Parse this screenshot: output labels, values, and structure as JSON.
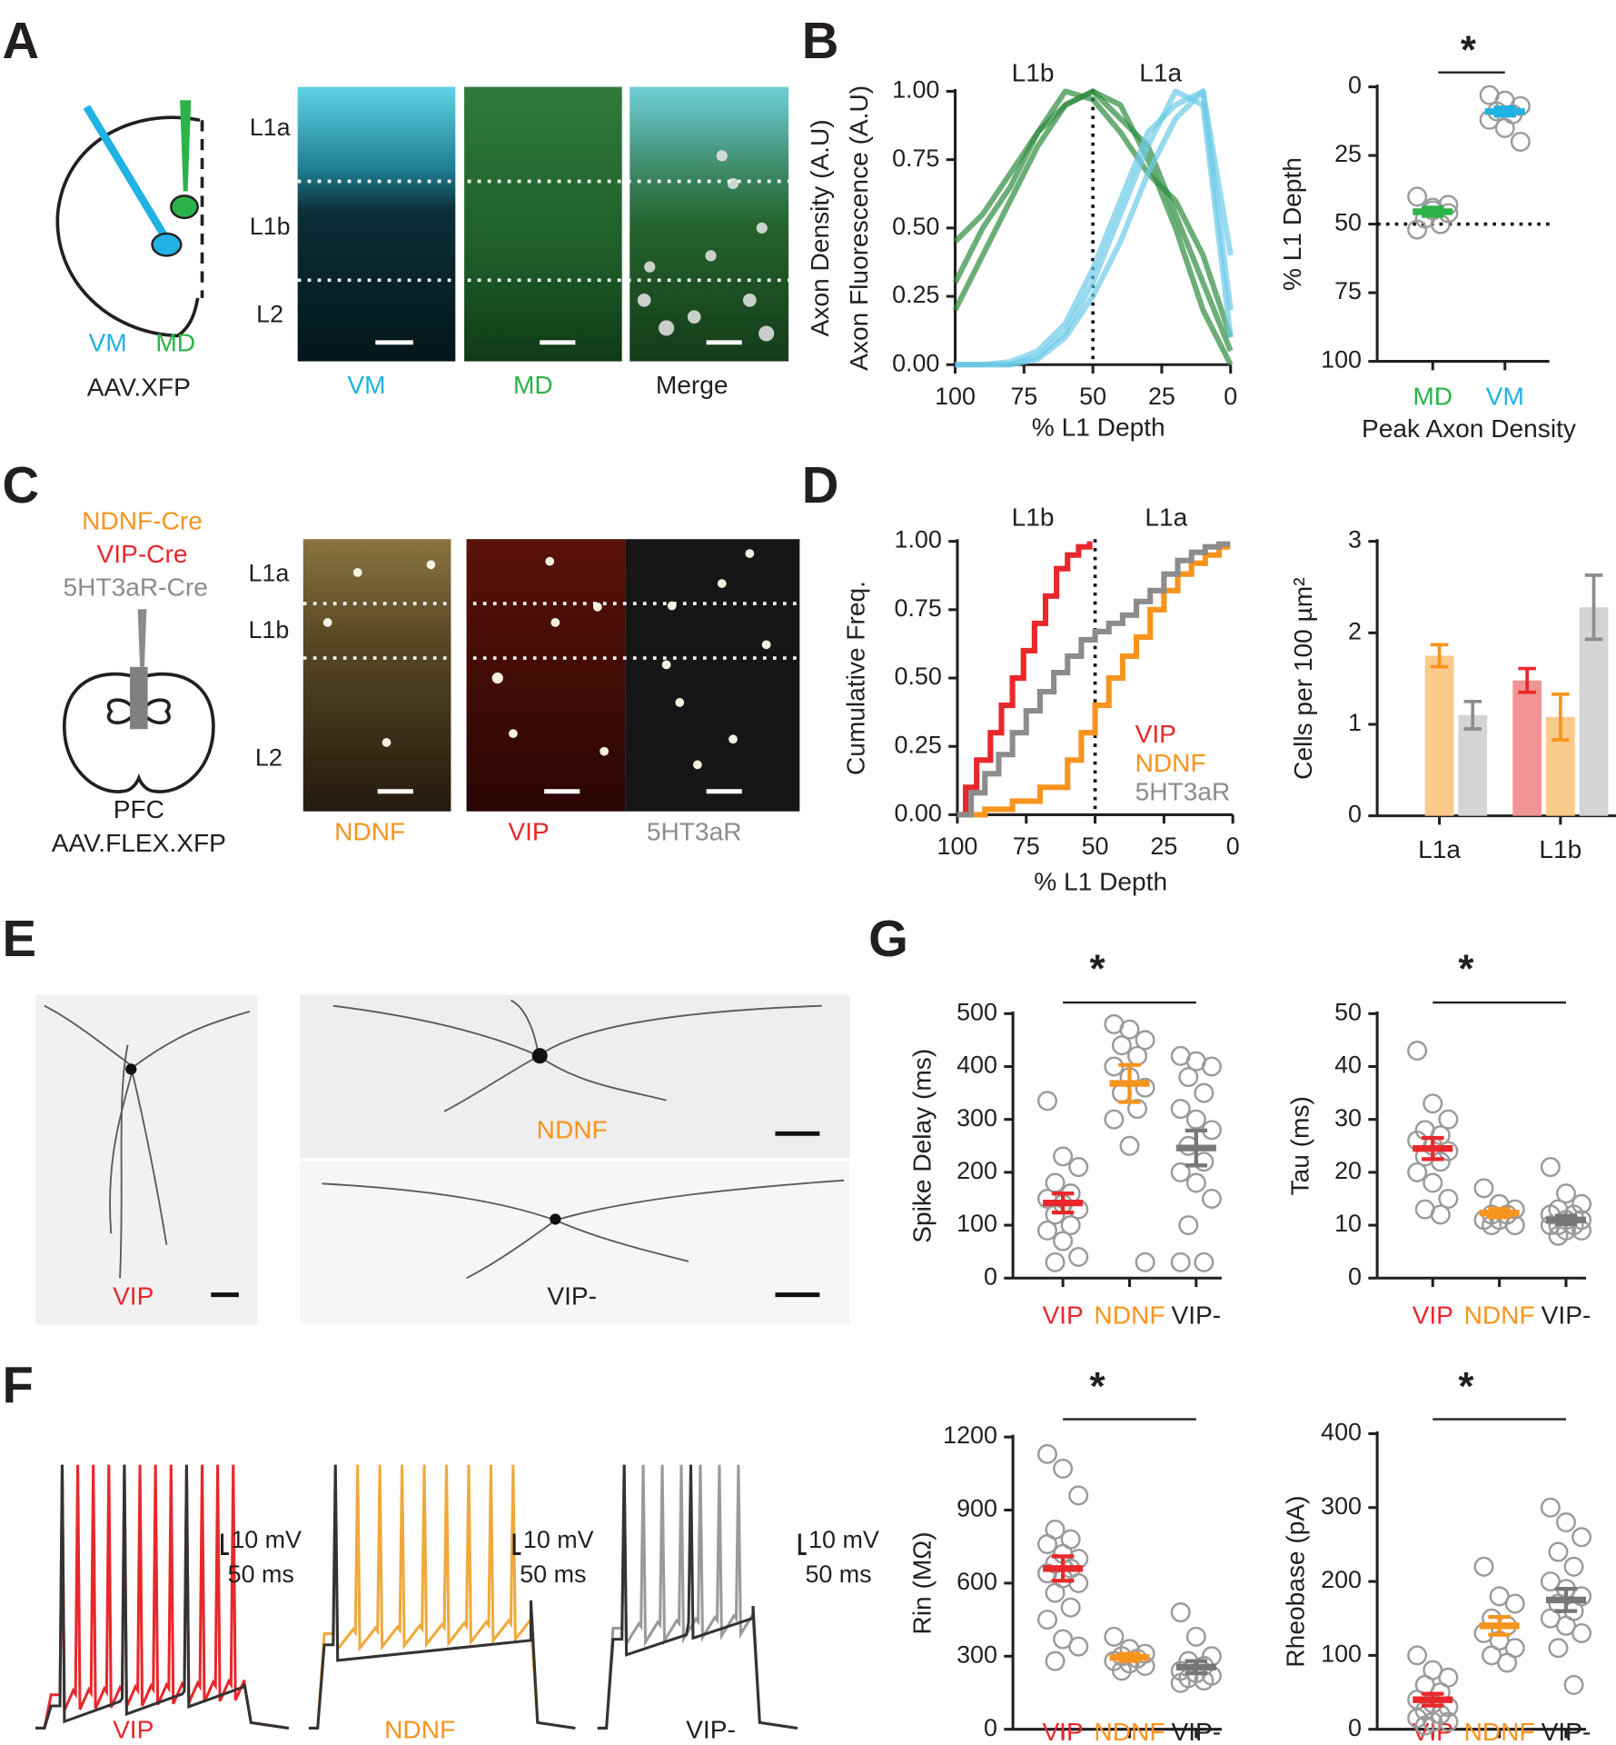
{
  "labels": {
    "letters": [
      "A",
      "B",
      "C",
      "D",
      "E",
      "F",
      "G"
    ],
    "a_injections": [
      "VM",
      "MD"
    ],
    "a_virus": "AAV.XFP",
    "a_layers": [
      "L1a",
      "L1b",
      "L2"
    ],
    "a_images": [
      "VM",
      "MD",
      "Merge"
    ],
    "c_lines": [
      "NDNF-Cre",
      "VIP-Cre",
      "5HT3aR-Cre"
    ],
    "c_region": "PFC",
    "c_virus": "AAV.FLEX.XFP",
    "c_layers": [
      "L1a",
      "L1b",
      "L2"
    ],
    "c_images": [
      "NDNF",
      "VIP",
      "5HT3aR"
    ],
    "e_images": [
      "VIP",
      "NDNF",
      "VIP-"
    ],
    "f_traces": [
      "VIP",
      "NDNF",
      "VIP-"
    ],
    "f_scale_v": [
      "10 mV",
      "10 mV",
      "10 mV"
    ],
    "f_scale_t": [
      "50 ms",
      "50 ms",
      "50 ms"
    ]
  },
  "chart_data": [
    {
      "type": "line",
      "x": [
        100,
        90,
        80,
        70,
        60,
        50,
        40,
        30,
        20,
        10,
        0
      ],
      "xlim": [
        100,
        0
      ],
      "xticks": [
        100,
        75,
        50,
        25,
        0
      ],
      "ylim": [
        0,
        1
      ],
      "yticks": [
        {
          "value": 0,
          "label": "0.00"
        },
        0.25,
        {
          "value": 0.5,
          "label": "0.50"
        },
        0.75,
        {
          "value": 1,
          "label": "1.00"
        }
      ],
      "xlabel": "% L1 Depth",
      "ylabel": [
        "Axon Density (A.U)",
        "Axon Fluorescence (A.U)"
      ],
      "annotations": [
        "L1b",
        "L1a"
      ],
      "refline_x": 50,
      "series": [
        {
          "color": "#2e8b3e",
          "values": [
            0.2,
            0.4,
            0.6,
            0.8,
            0.95,
            1.0,
            0.95,
            0.75,
            0.5,
            0.2,
            0.0
          ]
        },
        {
          "color": "#2e8b3e",
          "values": [
            0.45,
            0.55,
            0.7,
            0.85,
            0.95,
            1.0,
            0.9,
            0.8,
            0.55,
            0.3,
            0.05
          ]
        },
        {
          "color": "#2e8b3e",
          "values": [
            0.3,
            0.5,
            0.65,
            0.85,
            1.0,
            0.97,
            0.85,
            0.7,
            0.6,
            0.4,
            0.1
          ]
        },
        {
          "color": "#6ccbe8",
          "values": [
            0,
            0,
            0,
            0.02,
            0.1,
            0.25,
            0.45,
            0.7,
            0.9,
            1.0,
            0.2
          ]
        },
        {
          "color": "#6ccbe8",
          "values": [
            0,
            0,
            0,
            0.03,
            0.12,
            0.3,
            0.55,
            0.8,
            1.0,
            0.95,
            0.1
          ]
        },
        {
          "color": "#6ccbe8",
          "values": [
            0,
            0,
            0.01,
            0.05,
            0.15,
            0.35,
            0.6,
            0.85,
            0.95,
            1.0,
            0.4
          ]
        }
      ]
    },
    {
      "type": "dotplot",
      "categories": [
        "MD",
        "VM"
      ],
      "category_colors": [
        "#2bb34a",
        "#1fb2e3"
      ],
      "mean_colors": [
        "#2bb34a",
        "#1fb2e3"
      ],
      "points": [
        [
          40,
          44,
          46,
          48,
          50,
          52,
          45,
          43
        ],
        [
          3,
          5,
          7,
          9,
          10,
          12,
          15,
          20
        ]
      ],
      "means": [
        45.5,
        9
      ],
      "errors": [
        1.5,
        1.5
      ],
      "ylim": [
        100,
        0
      ],
      "yticks": [
        0,
        25,
        50,
        75,
        100
      ],
      "xlabel": "Peak Axon Density",
      "ylabel": "% L1 Depth",
      "annotation": "*",
      "refline_y": 50
    },
    {
      "type": "step",
      "xlim": [
        100,
        0
      ],
      "xticks": [
        100,
        75,
        50,
        25,
        0
      ],
      "ylim": [
        0,
        1
      ],
      "yticks": [
        {
          "value": 0,
          "label": "0.00"
        },
        0.25,
        {
          "value": 0.5,
          "label": "0.50"
        },
        0.75,
        {
          "value": 1,
          "label": "1.00"
        }
      ],
      "xlabel": "% L1 Depth",
      "ylabel": "Cumulative Freq.",
      "annotations": [
        "L1b",
        "L1a"
      ],
      "refline_x": 50,
      "series": [
        {
          "name": "VIP",
          "color": "#e8282b",
          "x": [
            100,
            97,
            93,
            88,
            84,
            80,
            76,
            72,
            68,
            64,
            60,
            56,
            52
          ],
          "values": [
            0,
            0.1,
            0.2,
            0.3,
            0.4,
            0.5,
            0.6,
            0.7,
            0.8,
            0.9,
            0.95,
            0.98,
            1.0
          ]
        },
        {
          "name": "NDNF",
          "color": "#f7941d",
          "x": [
            100,
            90,
            80,
            70,
            60,
            55,
            50,
            45,
            40,
            35,
            30,
            25,
            20,
            15,
            10,
            5,
            2
          ],
          "values": [
            0,
            0.02,
            0.05,
            0.1,
            0.2,
            0.3,
            0.4,
            0.5,
            0.58,
            0.65,
            0.75,
            0.82,
            0.88,
            0.92,
            0.95,
            0.98,
            1.0
          ]
        },
        {
          "name": "5HT3aR",
          "color": "#8c8c8c",
          "x": [
            100,
            95,
            90,
            85,
            80,
            75,
            70,
            65,
            60,
            55,
            50,
            45,
            40,
            35,
            30,
            25,
            20,
            15,
            10,
            5,
            2
          ],
          "values": [
            0,
            0.08,
            0.15,
            0.22,
            0.3,
            0.38,
            0.45,
            0.52,
            0.58,
            0.64,
            0.67,
            0.7,
            0.73,
            0.78,
            0.82,
            0.88,
            0.93,
            0.96,
            0.98,
            0.99,
            1.0
          ]
        }
      ]
    },
    {
      "type": "bar",
      "categories": [
        "L1a",
        "L1b"
      ],
      "ylim": [
        0,
        3
      ],
      "yticks": [
        0,
        1,
        2,
        3
      ],
      "ylabel": "Cells per 100 µm²",
      "series": [
        {
          "color": "#f29393",
          "error_color": "#e8282b",
          "values": [
            null,
            1.48
          ],
          "errors": [
            null,
            0.13
          ]
        },
        {
          "color": "#fbc98a",
          "error_color": "#f7941d",
          "values": [
            1.75,
            1.08
          ],
          "errors": [
            0.12,
            0.25
          ]
        },
        {
          "color": "#d4d4d4",
          "error_color": "#8c8c8c",
          "values": [
            1.1,
            2.28
          ],
          "errors": [
            0.15,
            0.35
          ]
        }
      ]
    },
    {
      "type": "dotplot",
      "categories": [
        "VIP",
        "NDNF",
        "VIP-"
      ],
      "category_colors": [
        "#e8282b",
        "#f7941d",
        "#231f20"
      ],
      "mean_colors": [
        "#e8282b",
        "#f7941d",
        "#777777"
      ],
      "points": [
        [
          335,
          230,
          210,
          180,
          160,
          150,
          140,
          130,
          120,
          100,
          90,
          70,
          40,
          30
        ],
        [
          480,
          470,
          450,
          440,
          420,
          400,
          380,
          360,
          350,
          320,
          300,
          250,
          30
        ],
        [
          420,
          410,
          400,
          380,
          350,
          320,
          300,
          280,
          250,
          220,
          200,
          180,
          150,
          100,
          30,
          30
        ]
      ],
      "means": [
        142,
        368,
        246
      ],
      "errors": [
        18,
        35,
        33
      ],
      "ylim": [
        0,
        500
      ],
      "yticks": [
        0,
        100,
        200,
        300,
        400,
        500
      ],
      "ylabel": "Spike Delay (ms)",
      "annotation": "*"
    },
    {
      "type": "dotplot",
      "categories": [
        "VIP",
        "NDNF",
        "VIP-"
      ],
      "category_colors": [
        "#e8282b",
        "#f7941d",
        "#231f20"
      ],
      "mean_colors": [
        "#e8282b",
        "#f7941d",
        "#777777"
      ],
      "points": [
        [
          43,
          33,
          30,
          28,
          27,
          26,
          25,
          24,
          23,
          22,
          20,
          18,
          15,
          13,
          12
        ],
        [
          17,
          14,
          13,
          12,
          12,
          11,
          11,
          10,
          10
        ],
        [
          21,
          16,
          14,
          13,
          12,
          12,
          11,
          11,
          10,
          10,
          10,
          9,
          9,
          8
        ]
      ],
      "means": [
        24.5,
        12.3,
        11
      ],
      "errors": [
        2,
        0.8,
        0.8
      ],
      "ylim": [
        0,
        50
      ],
      "yticks": [
        0,
        10,
        20,
        30,
        40,
        50
      ],
      "ylabel": "Tau (ms)",
      "annotation": "*"
    },
    {
      "type": "dotplot",
      "categories": [
        "VIP",
        "NDNF",
        "VIP-"
      ],
      "category_colors": [
        "#e8282b",
        "#f7941d",
        "#231f20"
      ],
      "mean_colors": [
        "#e8282b",
        "#f7941d",
        "#777777"
      ],
      "points": [
        [
          1130,
          1070,
          960,
          820,
          780,
          760,
          720,
          700,
          680,
          660,
          640,
          620,
          600,
          560,
          500,
          450,
          370,
          340,
          280
        ],
        [
          380,
          330,
          310,
          300,
          290,
          280,
          270,
          260,
          240
        ],
        [
          480,
          380,
          300,
          280,
          260,
          240,
          230,
          220,
          210,
          200,
          190
        ]
      ],
      "means": [
        660,
        295,
        255
      ],
      "errors": [
        50,
        15,
        25
      ],
      "ylim": [
        0,
        1200
      ],
      "yticks": [
        0,
        300,
        600,
        900,
        1200
      ],
      "ylabel": "Rin (MΩ)",
      "annotation": "*"
    },
    {
      "type": "dotplot",
      "categories": [
        "VIP",
        "NDNF",
        "VIP-"
      ],
      "category_colors": [
        "#e8282b",
        "#f7941d",
        "#231f20"
      ],
      "mean_colors": [
        "#e8282b",
        "#f7941d",
        "#777777"
      ],
      "points": [
        [
          100,
          80,
          70,
          60,
          50,
          40,
          35,
          30,
          25,
          20,
          15,
          10,
          10,
          5
        ],
        [
          220,
          180,
          170,
          150,
          140,
          130,
          120,
          110,
          100,
          90
        ],
        [
          300,
          280,
          260,
          240,
          220,
          200,
          190,
          180,
          170,
          160,
          150,
          140,
          130,
          110,
          60
        ]
      ],
      "means": [
        40,
        140,
        175
      ],
      "errors": [
        8,
        12,
        15
      ],
      "ylim": [
        0,
        400
      ],
      "yticks": [
        0,
        100,
        200,
        300,
        400
      ],
      "ylabel": "Rheobase (pA)",
      "annotation": "*"
    }
  ]
}
